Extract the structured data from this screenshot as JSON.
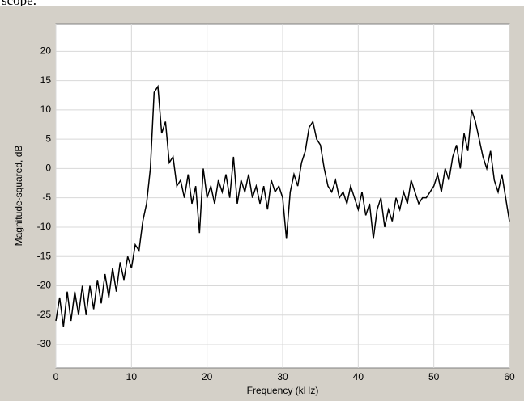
{
  "caption": "scope.",
  "chart_data": {
    "type": "line",
    "xlabel": "Frequency (kHz)",
    "ylabel": "Magnitude-squared, dB",
    "xlim": [
      0,
      60
    ],
    "xticks": [
      0,
      10,
      20,
      30,
      40,
      50,
      60
    ],
    "ylim": [
      -34,
      24.6
    ],
    "yticks": [
      -30,
      -25,
      -20,
      -15,
      -10,
      -5,
      0,
      5,
      10,
      15,
      20
    ],
    "grid": true,
    "x": [
      0,
      0.5,
      1,
      1.5,
      2,
      2.5,
      3,
      3.5,
      4,
      4.5,
      5,
      5.5,
      6,
      6.5,
      7,
      7.5,
      8,
      8.5,
      9,
      9.5,
      10,
      10.5,
      11,
      11.5,
      12,
      12.5,
      13,
      13.5,
      14,
      14.5,
      15,
      15.5,
      16,
      16.5,
      17,
      17.5,
      18,
      18.5,
      19,
      19.5,
      20,
      20.5,
      21,
      21.5,
      22,
      22.5,
      23,
      23.5,
      24,
      24.5,
      25,
      25.5,
      26,
      26.5,
      27,
      27.5,
      28,
      28.5,
      29,
      29.5,
      30,
      30.5,
      31,
      31.5,
      32,
      32.5,
      33,
      33.5,
      34,
      34.5,
      35,
      35.5,
      36,
      36.5,
      37,
      37.5,
      38,
      38.5,
      39,
      39.5,
      40,
      40.5,
      41,
      41.5,
      42,
      42.5,
      43,
      43.5,
      44,
      44.5,
      45,
      45.5,
      46,
      46.5,
      47,
      47.5,
      48,
      48.5,
      49,
      49.5,
      50,
      50.5,
      51,
      51.5,
      52,
      52.5,
      53,
      53.5,
      54,
      54.5,
      55,
      55.5,
      56,
      56.5,
      57,
      57.5,
      58,
      58.5,
      59,
      59.5,
      60
    ],
    "series": [
      {
        "color": "#000000",
        "values": [
          -26,
          -22,
          -27,
          -21,
          -26,
          -21,
          -25,
          -20,
          -25,
          -20,
          -24,
          -19,
          -23,
          -18,
          -22,
          -17,
          -21,
          -16,
          -19,
          -15,
          -17,
          -13,
          -14,
          -9,
          -6,
          0,
          13,
          14,
          6,
          8,
          1,
          2,
          -3,
          -2,
          -5,
          -1,
          -6,
          -3,
          -11,
          0,
          -5,
          -3,
          -6,
          -2,
          -4,
          -1,
          -5,
          2,
          -6,
          -2,
          -4,
          -1,
          -5,
          -3,
          -6,
          -3,
          -7,
          -2,
          -4,
          -3,
          -5,
          -12,
          -4,
          -1,
          -3,
          1,
          3,
          7,
          8,
          5,
          4,
          0,
          -3,
          -4,
          -2,
          -5,
          -4,
          -6,
          -3,
          -5,
          -7,
          -4,
          -8,
          -6,
          -12,
          -7,
          -5,
          -10,
          -7,
          -9,
          -5,
          -7,
          -4,
          -6,
          -2,
          -4,
          -6,
          -5,
          -5,
          -4,
          -3,
          -1,
          -4,
          0,
          -2,
          2,
          4,
          0,
          6,
          3,
          10,
          8,
          5,
          2,
          0,
          3,
          -2,
          -4,
          -1,
          -5,
          -9
        ]
      }
    ]
  }
}
